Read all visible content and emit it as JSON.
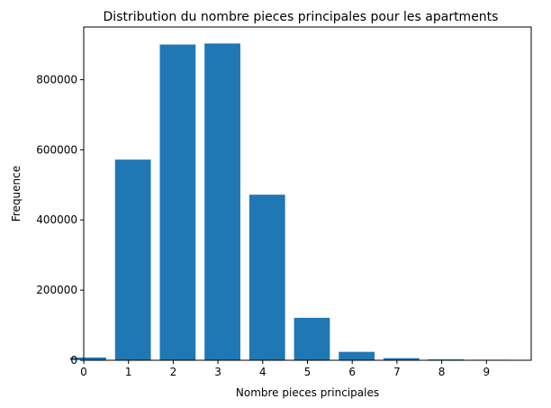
{
  "chart_data": {
    "type": "bar",
    "title": "Distribution du nombre pieces principales pour les apartments",
    "xlabel": "Nombre pieces principales",
    "ylabel": "Frequence",
    "categories": [
      0,
      1,
      2,
      3,
      4,
      5,
      6,
      7,
      8,
      9
    ],
    "values": [
      8000,
      572000,
      900000,
      903000,
      472000,
      121000,
      24000,
      6000,
      2500,
      1500
    ],
    "bar_color": "#1f77b4",
    "xlim": [
      0,
      10
    ],
    "ylim": [
      0,
      950000
    ],
    "x_ticks": [
      "0",
      "1",
      "2",
      "3",
      "4",
      "5",
      "6",
      "7",
      "8",
      "9"
    ],
    "y_ticks": [
      0,
      200000,
      400000,
      600000,
      800000
    ],
    "y_tick_labels": [
      "0",
      "200000",
      "400000",
      "600000",
      "800000"
    ],
    "grid": false,
    "legend": "none"
  }
}
